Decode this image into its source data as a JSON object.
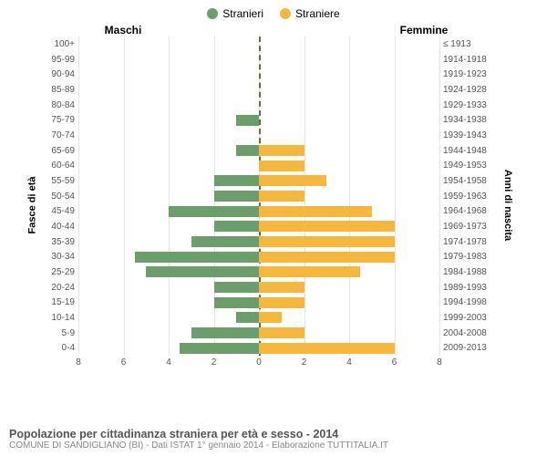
{
  "legend": {
    "male": {
      "label": "Stranieri",
      "color": "#6b9e6b"
    },
    "female": {
      "label": "Straniere",
      "color": "#f5b83d"
    }
  },
  "headers": {
    "left": "Maschi",
    "right": "Femmine"
  },
  "y_axis": {
    "left_title": "Fasce di età",
    "right_title": "Anni di nascita"
  },
  "chart": {
    "type": "population-pyramid",
    "xlim": [
      0,
      8
    ],
    "xticks": [
      8,
      6,
      4,
      2,
      0,
      2,
      4,
      6,
      8
    ],
    "grid_color": "#e6e6e6",
    "center_line_color": "#6b6b3a",
    "background": "#ffffff",
    "rows": [
      {
        "age": "100+",
        "birth": "≤ 1913",
        "m": 0,
        "f": 0
      },
      {
        "age": "95-99",
        "birth": "1914-1918",
        "m": 0,
        "f": 0
      },
      {
        "age": "90-94",
        "birth": "1919-1923",
        "m": 0,
        "f": 0
      },
      {
        "age": "85-89",
        "birth": "1924-1928",
        "m": 0,
        "f": 0
      },
      {
        "age": "80-84",
        "birth": "1929-1933",
        "m": 0,
        "f": 0
      },
      {
        "age": "75-79",
        "birth": "1934-1938",
        "m": 1,
        "f": 0
      },
      {
        "age": "70-74",
        "birth": "1939-1943",
        "m": 0,
        "f": 0
      },
      {
        "age": "65-69",
        "birth": "1944-1948",
        "m": 1,
        "f": 2
      },
      {
        "age": "60-64",
        "birth": "1949-1953",
        "m": 0,
        "f": 2
      },
      {
        "age": "55-59",
        "birth": "1954-1958",
        "m": 2,
        "f": 3
      },
      {
        "age": "50-54",
        "birth": "1959-1963",
        "m": 2,
        "f": 2
      },
      {
        "age": "45-49",
        "birth": "1964-1968",
        "m": 4,
        "f": 5
      },
      {
        "age": "40-44",
        "birth": "1969-1973",
        "m": 2,
        "f": 6
      },
      {
        "age": "35-39",
        "birth": "1974-1978",
        "m": 3,
        "f": 6
      },
      {
        "age": "30-34",
        "birth": "1979-1983",
        "m": 5.5,
        "f": 6
      },
      {
        "age": "25-29",
        "birth": "1984-1988",
        "m": 5,
        "f": 4.5
      },
      {
        "age": "20-24",
        "birth": "1989-1993",
        "m": 2,
        "f": 2
      },
      {
        "age": "15-19",
        "birth": "1994-1998",
        "m": 2,
        "f": 2
      },
      {
        "age": "10-14",
        "birth": "1999-2003",
        "m": 1,
        "f": 1
      },
      {
        "age": "5-9",
        "birth": "2004-2008",
        "m": 3,
        "f": 2
      },
      {
        "age": "0-4",
        "birth": "2009-2013",
        "m": 3.5,
        "f": 6
      }
    ]
  },
  "footer": {
    "title": "Popolazione per cittadinanza straniera per età e sesso - 2014",
    "subtitle": "COMUNE DI SANDIGLIANO (BI) - Dati ISTAT 1° gennaio 2014 - Elaborazione TUTTITALIA.IT"
  }
}
